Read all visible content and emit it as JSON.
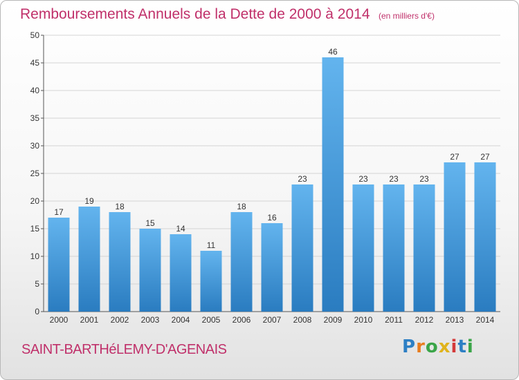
{
  "header": {
    "title": "Remboursements Annuels de la Dette de 2000 à 2014",
    "unit": "(en milliers d'€)"
  },
  "footer": {
    "commune": "SAINT-BARTHéLEMY-D'AGENAIS",
    "logo_letters": [
      "P",
      "r",
      "o",
      "x",
      "i",
      "t",
      "i"
    ]
  },
  "chart_data": {
    "type": "bar",
    "title": "Remboursements Annuels de la Dette de 2000 à 2014",
    "subtitle": "(en milliers d'€)",
    "xlabel": "",
    "ylabel": "",
    "categories": [
      "2000",
      "2001",
      "2002",
      "2003",
      "2004",
      "2005",
      "2006",
      "2007",
      "2008",
      "2009",
      "2010",
      "2011",
      "2012",
      "2013",
      "2014"
    ],
    "values": [
      17,
      19,
      18,
      15,
      14,
      11,
      18,
      16,
      23,
      46,
      23,
      23,
      23,
      27,
      27
    ],
    "ylim": [
      0,
      50
    ],
    "yticks": [
      0,
      5,
      10,
      15,
      20,
      25,
      30,
      35,
      40,
      45,
      50
    ],
    "grid": true,
    "bar_color_top": "#63b4ee",
    "bar_color_bottom": "#2a7cc0"
  }
}
